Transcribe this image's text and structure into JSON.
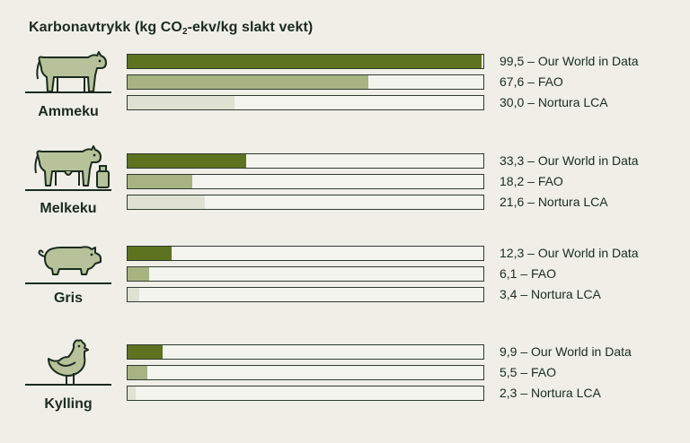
{
  "title_main": "Karbonavtrykk (kg CO",
  "title_sub": "2",
  "title_rest": "-ekv/kg slakt vekt)",
  "colors": {
    "background": "#efefe7",
    "text": "#1c2a1f",
    "our_world_in_data": "#5e731f",
    "fao": "#a8b382",
    "nortura_lca": "#dfe2d2",
    "icon_fill": "#b7c29a"
  },
  "chart_data": {
    "type": "bar",
    "orientation": "horizontal",
    "title": "Karbonavtrykk (kg CO2-ekv/kg slakt vekt)",
    "xlim": [
      0,
      100
    ],
    "categories": [
      "Ammeku",
      "Melkeku",
      "Gris",
      "Kylling"
    ],
    "series": [
      {
        "name": "Our World in Data",
        "color": "#5e731f",
        "values": [
          99.5,
          33.3,
          12.3,
          9.9
        ]
      },
      {
        "name": "FAO",
        "color": "#a8b382",
        "values": [
          67.6,
          18.2,
          6.1,
          5.5
        ]
      },
      {
        "name": "Nortura LCA",
        "color": "#dfe2d2",
        "values": [
          30.0,
          21.6,
          3.4,
          2.3
        ]
      }
    ],
    "labels": [
      [
        "99,5 – Our World in Data",
        "67,6 – FAO",
        "30,0 – Nortura LCA"
      ],
      [
        "33,3 – Our World in Data",
        "18,2 – FAO",
        "21,6 – Nortura LCA"
      ],
      [
        "12,3 – Our World in Data",
        "6,1 – FAO",
        "3,4 – Nortura LCA"
      ],
      [
        "9,9 – Our World in Data",
        "5,5 – FAO",
        "2,3 – Nortura LCA"
      ]
    ],
    "icons": [
      "cow-icon",
      "dairy-cow-icon",
      "pig-icon",
      "chicken-icon"
    ]
  }
}
